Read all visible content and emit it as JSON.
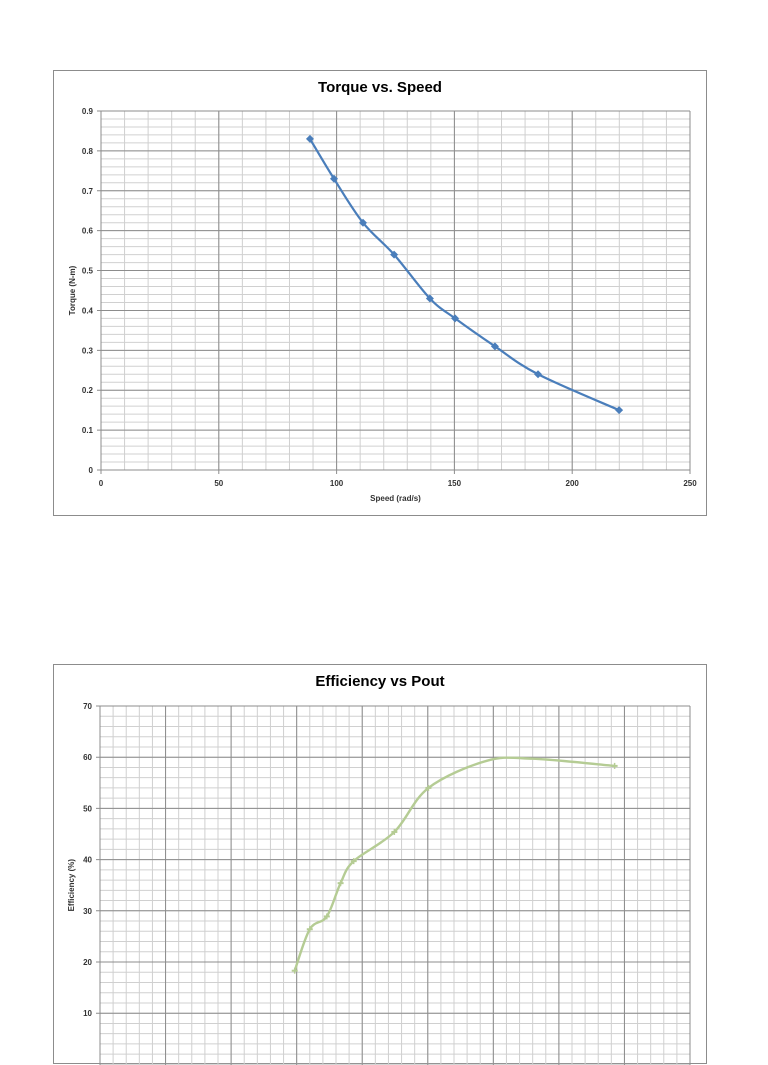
{
  "chart_data": [
    {
      "type": "line",
      "title": "Torque vs. Speed",
      "xlabel": "Speed (rad/s)",
      "ylabel": "Torque (N-m)",
      "xlim": [
        0,
        250
      ],
      "ylim": [
        0,
        0.9
      ],
      "x_ticks": [
        0,
        50,
        100,
        150,
        200,
        250
      ],
      "y_ticks": [
        0,
        0.1,
        0.2,
        0.3,
        0.4,
        0.5,
        0.6,
        0.7,
        0.8,
        0.9
      ],
      "x_minor_step": 10,
      "y_minor_step": 0.02,
      "grid": true,
      "legend": null,
      "smooth": true,
      "marker": "diamond",
      "color": "#4a7ebb",
      "series": [
        {
          "name": "Torque",
          "x": [
            88.7,
            98.9,
            111.2,
            124.4,
            139.6,
            150.3,
            167.2,
            185.5,
            219.9
          ],
          "y": [
            0.83,
            0.73,
            0.62,
            0.54,
            0.43,
            0.38,
            0.31,
            0.24,
            0.15
          ]
        }
      ]
    },
    {
      "type": "line",
      "title": "Efficiency vs Pout",
      "xlabel": "",
      "ylabel": "Efficiency (%)",
      "ylim": [
        10,
        70
      ],
      "y_ticks": [
        10,
        20,
        30,
        40,
        50,
        60,
        70
      ],
      "y_minor_step": 2,
      "x_major_divisions": 9,
      "x_minor_per_major": 5,
      "x_note": "x-axis tick labels not visible (cropped); x given in major-grid-division units from left edge (0-9)",
      "grid": true,
      "legend": null,
      "smooth": true,
      "marker": "x",
      "color": "#b5cc94",
      "series": [
        {
          "name": "Efficiency",
          "x": [
            2.97,
            3.2,
            3.46,
            3.67,
            3.87,
            4.49,
            5.01,
            7.85
          ],
          "y": [
            18.3,
            26.4,
            28.9,
            35.4,
            39.7,
            45.4,
            54.0,
            58.3
          ]
        }
      ]
    }
  ]
}
